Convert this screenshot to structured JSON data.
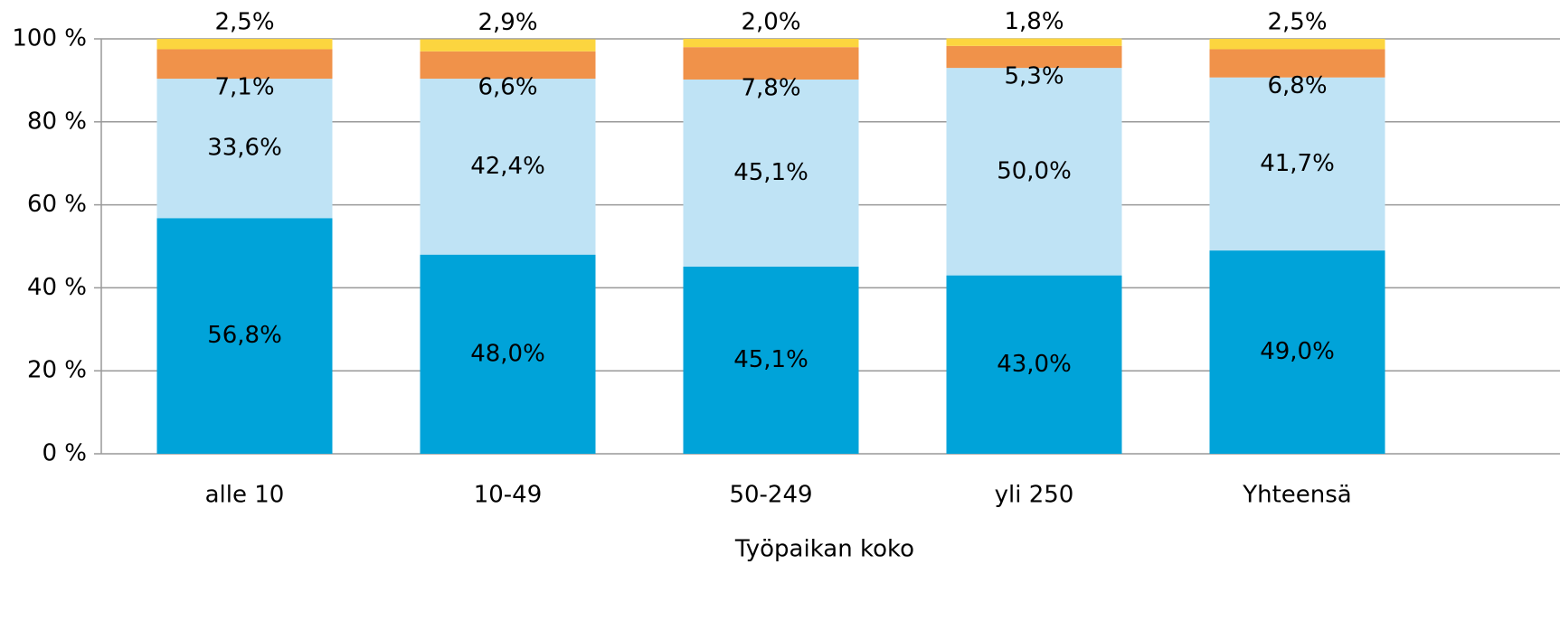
{
  "chart_data": {
    "type": "stacked_bar",
    "x_label": "Työpaikan koko",
    "categories": [
      "alle 10",
      "10-49",
      "50-249",
      "yli 250",
      "Yhteensä"
    ],
    "series": [
      {
        "color": "#00a3d9",
        "values": [
          56.8,
          48.0,
          45.1,
          43.0,
          49.0
        ],
        "value_labels": [
          "56,8%",
          "48,0%",
          "45,1%",
          "43,0%",
          "49,0%"
        ]
      },
      {
        "color": "#bfe3f5",
        "values": [
          33.6,
          42.4,
          45.1,
          50.0,
          41.7
        ],
        "value_labels": [
          "33,6%",
          "42,4%",
          "45,1%",
          "50,0%",
          "41,7%"
        ]
      },
      {
        "color": "#f0924a",
        "values": [
          7.1,
          6.6,
          7.8,
          5.3,
          6.8
        ],
        "value_labels": [
          "7,1%",
          "6,6%",
          "7,8%",
          "5,3%",
          "6,8%"
        ]
      },
      {
        "color": "#fcd53f",
        "values": [
          2.5,
          2.9,
          2.0,
          1.8,
          2.5
        ],
        "value_labels": [
          "2,5%",
          "2,9%",
          "2,0%",
          "1,8%",
          "2,5%"
        ]
      }
    ],
    "ylim": [
      0,
      100
    ],
    "yticks": [
      {
        "value": 0,
        "label": "0 %"
      },
      {
        "value": 20,
        "label": "20 %"
      },
      {
        "value": 40,
        "label": "40 %"
      },
      {
        "value": 60,
        "label": "60 %"
      },
      {
        "value": 80,
        "label": "80 %"
      },
      {
        "value": 100,
        "label": "100 %"
      }
    ],
    "grid": true
  }
}
